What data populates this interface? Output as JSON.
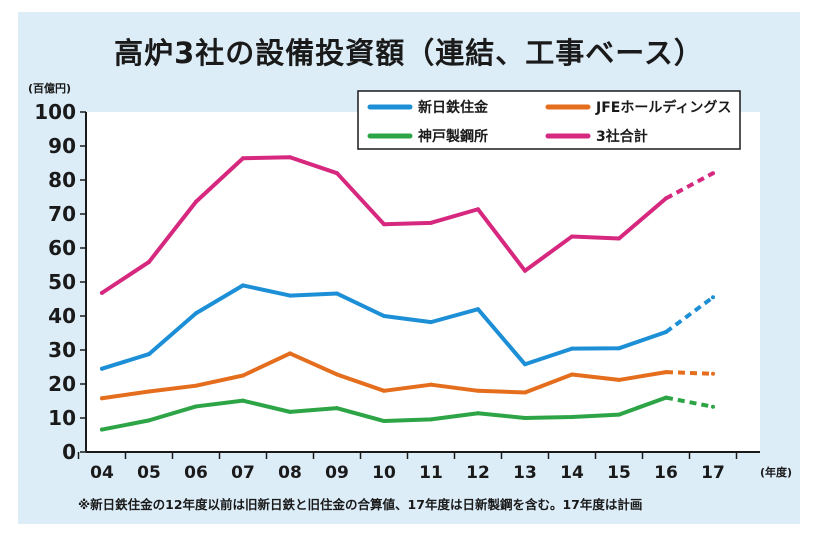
{
  "chart_data": {
    "type": "line",
    "title": "高炉3社の設備投資額（連結、工事ベース）",
    "ylabel": "(百億円)",
    "xlabel": "(年度)",
    "categories": [
      "04",
      "05",
      "06",
      "07",
      "08",
      "09",
      "10",
      "11",
      "12",
      "13",
      "14",
      "15",
      "16",
      "17"
    ],
    "ylim": [
      0,
      100
    ],
    "yticks": [
      0,
      10,
      20,
      30,
      40,
      50,
      60,
      70,
      80,
      90,
      100
    ],
    "grid": false,
    "legend_position": "top-right",
    "plan_from_index": 12,
    "series": [
      {
        "name": "新日鉄住金",
        "color": "#1d8fd6",
        "values": [
          24.5,
          28.8,
          40.8,
          49.0,
          46.0,
          46.6,
          40.0,
          38.2,
          42.0,
          25.8,
          30.4,
          30.5,
          35.3,
          45.5
        ]
      },
      {
        "name": "JFEホールディングス",
        "color": "#e46e1d",
        "values": [
          15.8,
          17.8,
          19.5,
          22.5,
          29.0,
          22.8,
          18.0,
          19.8,
          18.0,
          17.5,
          22.8,
          21.2,
          23.5,
          23.0
        ]
      },
      {
        "name": "神戸製鋼所",
        "color": "#2da546",
        "values": [
          6.6,
          9.3,
          13.4,
          15.1,
          11.8,
          12.9,
          9.1,
          9.6,
          11.4,
          10.0,
          10.3,
          11.0,
          16.0,
          13.3
        ]
      },
      {
        "name": "3社合計",
        "color": "#d6287f",
        "values": [
          46.8,
          55.9,
          73.6,
          86.4,
          86.7,
          82.0,
          67.0,
          67.4,
          71.4,
          53.3,
          63.4,
          62.8,
          74.6,
          82.0
        ]
      }
    ]
  },
  "footnote": "※新日鉄住金の12年度以前は旧新日鉄と旧住金の合算値、17年度は日新製鋼を含む。17年度は計画"
}
